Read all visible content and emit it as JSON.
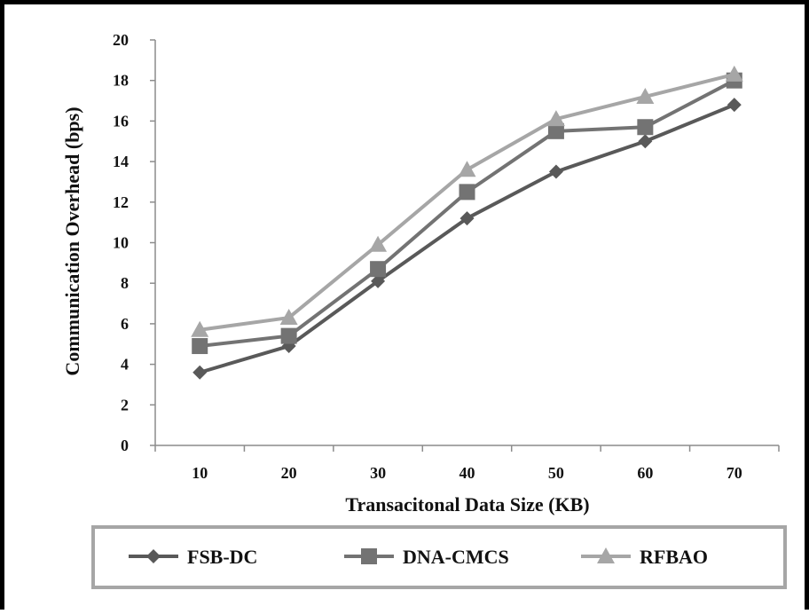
{
  "chart_data": {
    "type": "line",
    "xlabel": "Transacitonal Data Size (KB)",
    "ylabel": "Communication Overhead (bps)",
    "categories": [
      "10",
      "20",
      "30",
      "40",
      "50",
      "60",
      "70"
    ],
    "ylim": [
      0,
      20
    ],
    "yticks": [
      "0",
      "2",
      "4",
      "6",
      "8",
      "10",
      "12",
      "14",
      "16",
      "18",
      "20"
    ],
    "grid": false,
    "legend_position": "bottom",
    "series": [
      {
        "name": "FSB-DC",
        "marker": "diamond",
        "color": "#595959",
        "values": [
          3.6,
          4.9,
          8.1,
          11.2,
          13.5,
          15.0,
          16.8
        ]
      },
      {
        "name": "DNA-CMCS",
        "marker": "square",
        "color": "#737373",
        "values": [
          4.9,
          5.4,
          8.7,
          12.5,
          15.5,
          15.7,
          18.0
        ]
      },
      {
        "name": "RFBAO",
        "marker": "triangle",
        "color": "#a6a6a6",
        "values": [
          5.7,
          6.3,
          9.9,
          13.6,
          16.1,
          17.2,
          18.3
        ]
      }
    ]
  }
}
